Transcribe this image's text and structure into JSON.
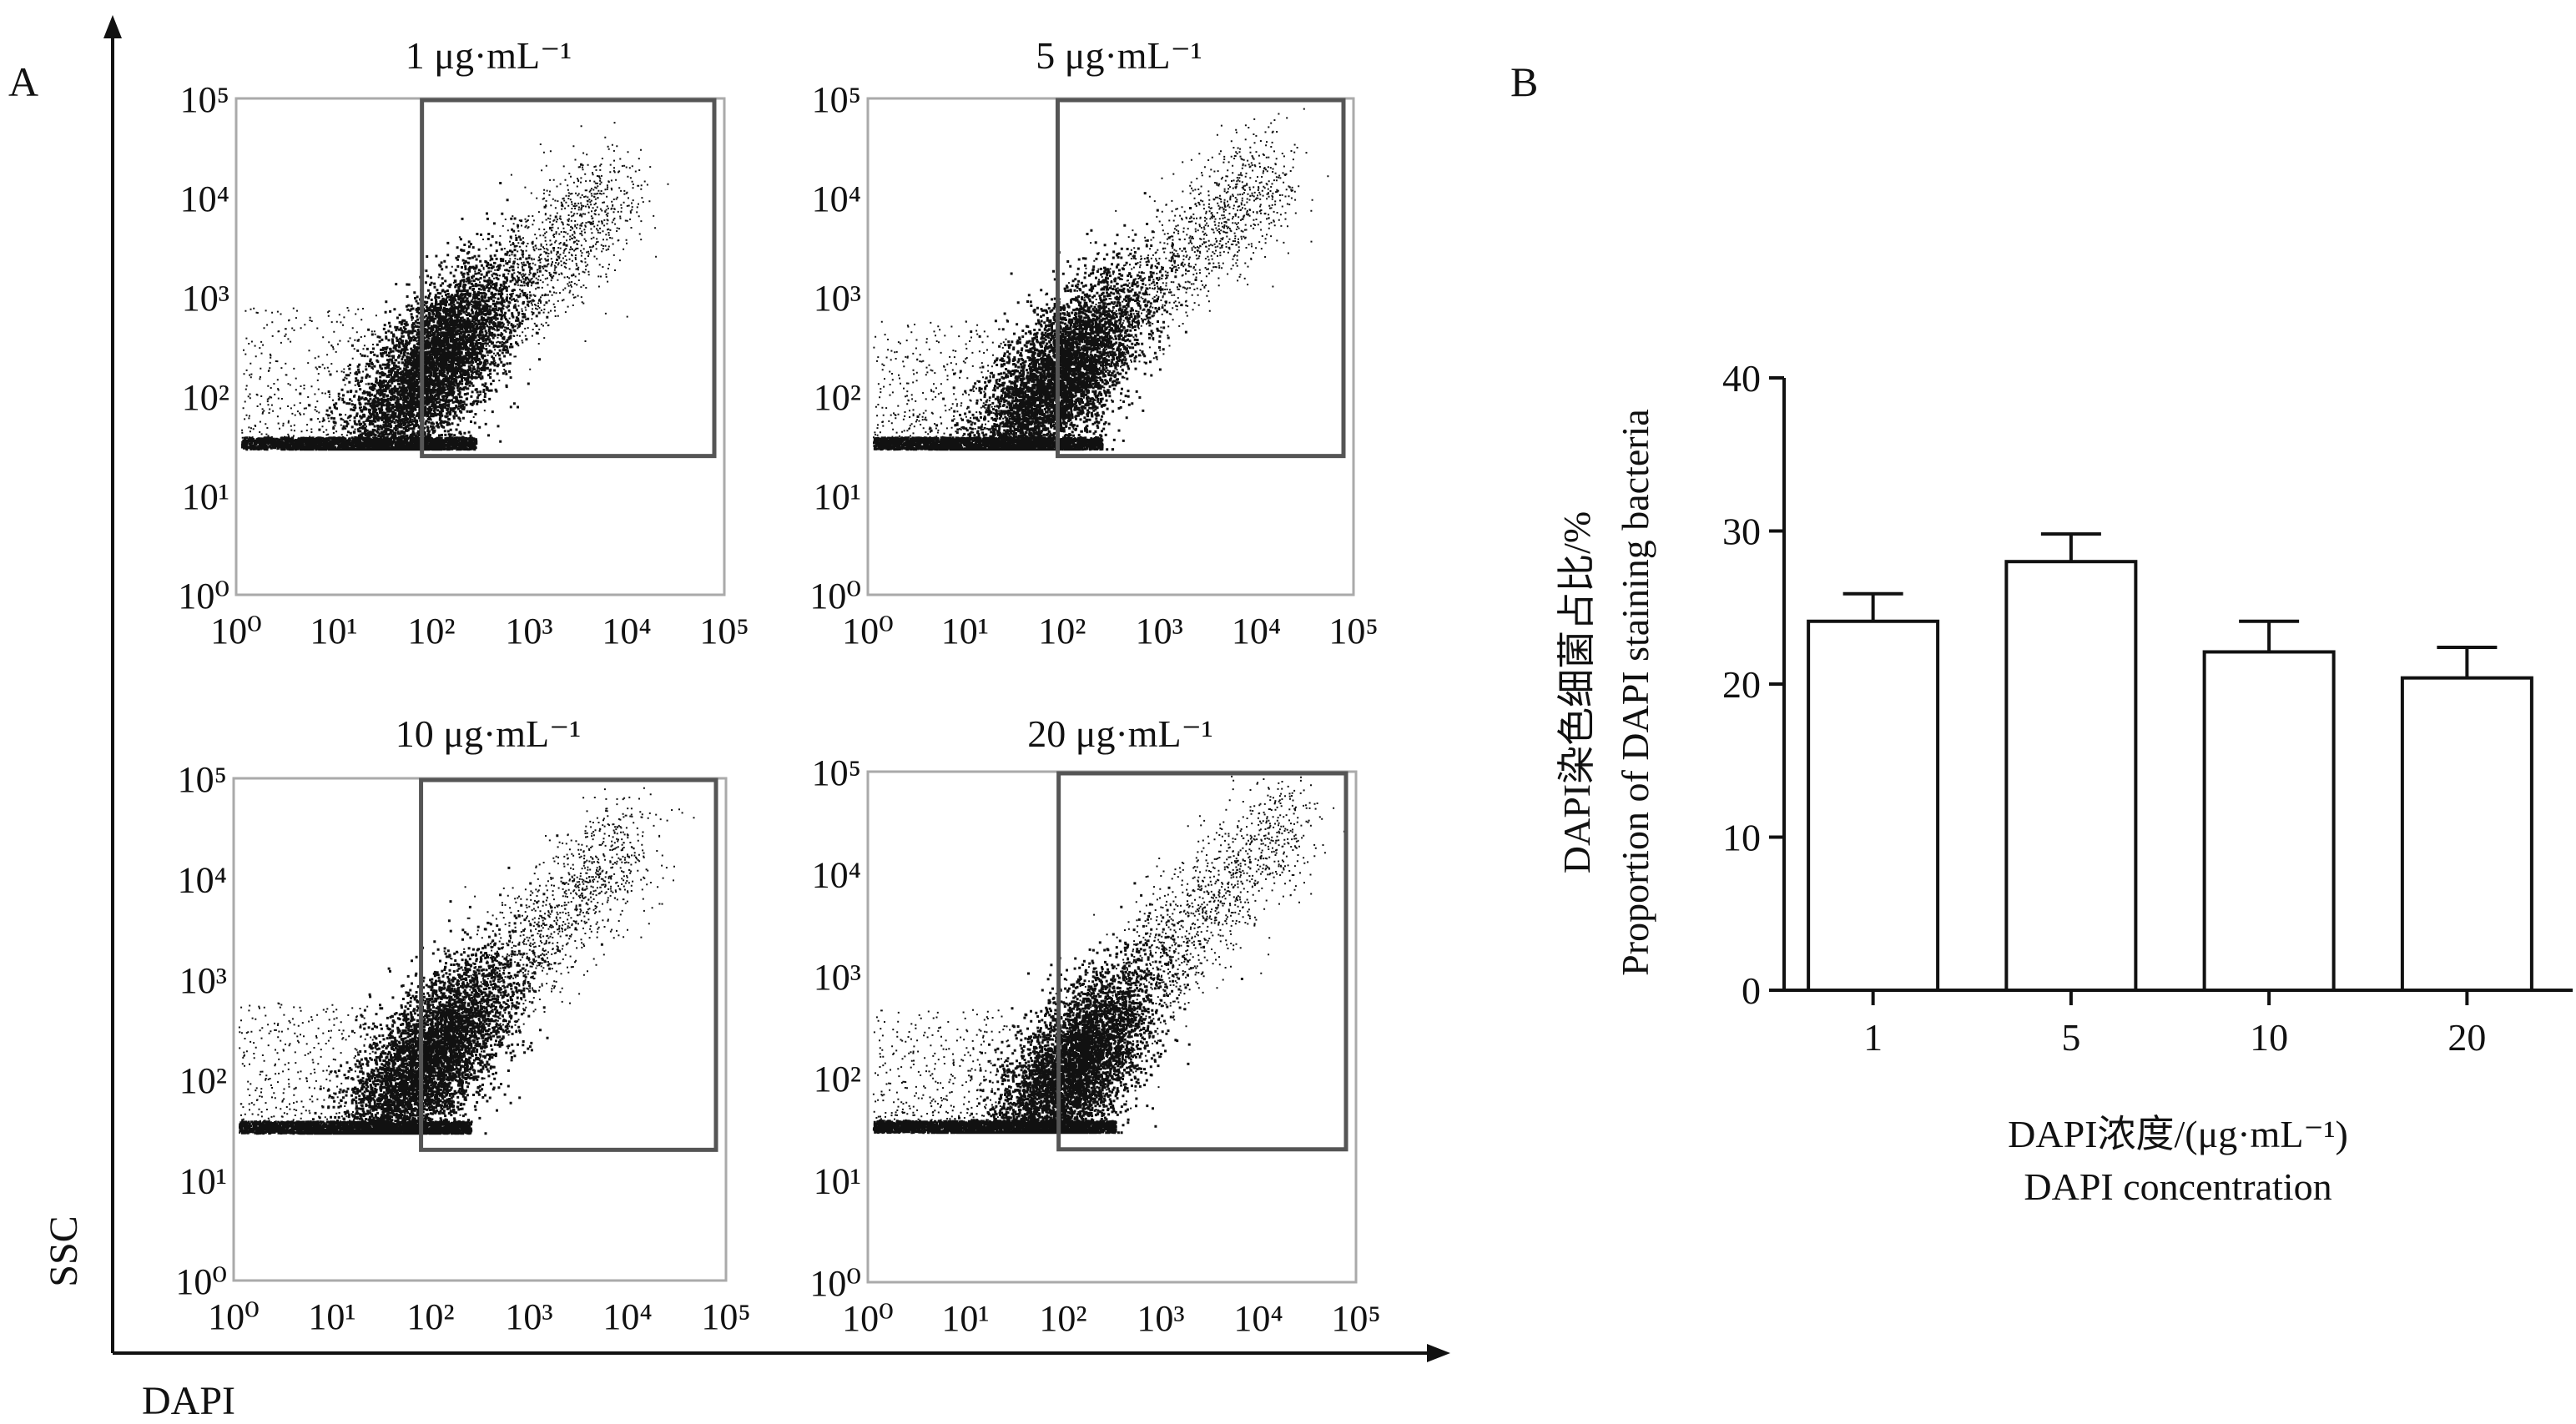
{
  "figure": {
    "panel_a_letter": "A",
    "panel_b_letter": "B",
    "shared_y_label": "SSC",
    "shared_x_label": "DAPI"
  },
  "chart_data": [
    {
      "type": "scatter",
      "title": "1 μg·mL⁻¹",
      "xscale": "log",
      "yscale": "log",
      "xlim": [
        1,
        100000
      ],
      "ylim": [
        1,
        100000
      ],
      "xticks": [
        "10⁰",
        "10¹",
        "10²",
        "10³",
        "10⁴",
        "10⁵"
      ],
      "yticks": [
        "10⁰",
        "10¹",
        "10²",
        "10³",
        "10⁴",
        "10⁵"
      ],
      "gate": {
        "x": [
          80,
          100000
        ],
        "y": [
          25,
          100000
        ]
      },
      "cloud": {
        "center_x": 100,
        "center_y": 200,
        "floor_y": 30,
        "spread": 1.0,
        "tail_x": 8000,
        "tail_y": 12000
      }
    },
    {
      "type": "scatter",
      "title": "5 μg·mL⁻¹",
      "xscale": "log",
      "yscale": "log",
      "xlim": [
        1,
        100000
      ],
      "ylim": [
        1,
        100000
      ],
      "xticks": [
        "10⁰",
        "10¹",
        "10²",
        "10³",
        "10⁴",
        "10⁵"
      ],
      "yticks": [
        "10⁰",
        "10¹",
        "10²",
        "10³",
        "10⁴",
        "10⁵"
      ],
      "gate": {
        "x": [
          90,
          100000
        ],
        "y": [
          25,
          100000
        ]
      },
      "cloud": {
        "center_x": 90,
        "center_y": 150,
        "floor_y": 30,
        "spread": 1.0,
        "tail_x": 15000,
        "tail_y": 20000
      }
    },
    {
      "type": "scatter",
      "title": "10 μg·mL⁻¹",
      "xscale": "log",
      "yscale": "log",
      "xlim": [
        1,
        100000
      ],
      "ylim": [
        1,
        100000
      ],
      "xticks": [
        "10⁰",
        "10¹",
        "10²",
        "10³",
        "10⁴",
        "10⁵"
      ],
      "yticks": [
        "10⁰",
        "10¹",
        "10²",
        "10³",
        "10⁴",
        "10⁵"
      ],
      "gate": {
        "x": [
          80,
          100000
        ],
        "y": [
          20,
          100000
        ]
      },
      "cloud": {
        "center_x": 90,
        "center_y": 150,
        "floor_y": 30,
        "spread": 1.0,
        "tail_x": 12000,
        "tail_y": 30000
      }
    },
    {
      "type": "scatter",
      "title": "20 μg·mL⁻¹",
      "xscale": "log",
      "yscale": "log",
      "xlim": [
        1,
        100000
      ],
      "ylim": [
        1,
        100000
      ],
      "xticks": [
        "10⁰",
        "10¹",
        "10²",
        "10³",
        "10⁴",
        "10⁵"
      ],
      "yticks": [
        "10⁰",
        "10¹",
        "10²",
        "10³",
        "10⁴",
        "10⁵"
      ],
      "gate": {
        "x": [
          90,
          100000
        ],
        "y": [
          20,
          100000
        ]
      },
      "cloud": {
        "center_x": 120,
        "center_y": 120,
        "floor_y": 30,
        "spread": 1.0,
        "tail_x": 20000,
        "tail_y": 40000
      }
    },
    {
      "type": "bar",
      "categories": [
        "1",
        "5",
        "10",
        "20"
      ],
      "values": [
        24.1,
        28.0,
        22.1,
        20.4
      ],
      "errors": [
        1.8,
        1.8,
        2.0,
        2.0
      ],
      "ylim": [
        0,
        40
      ],
      "yticks": [
        0,
        10,
        20,
        30,
        40
      ],
      "ylabel": "DAPI染色细菌占比/%",
      "ylabel_en": "Proportion of DAPI staining bacteria",
      "xlabel": "DAPI浓度/(μg·mL⁻¹)",
      "xlabel_en": "DAPI concentration"
    }
  ]
}
